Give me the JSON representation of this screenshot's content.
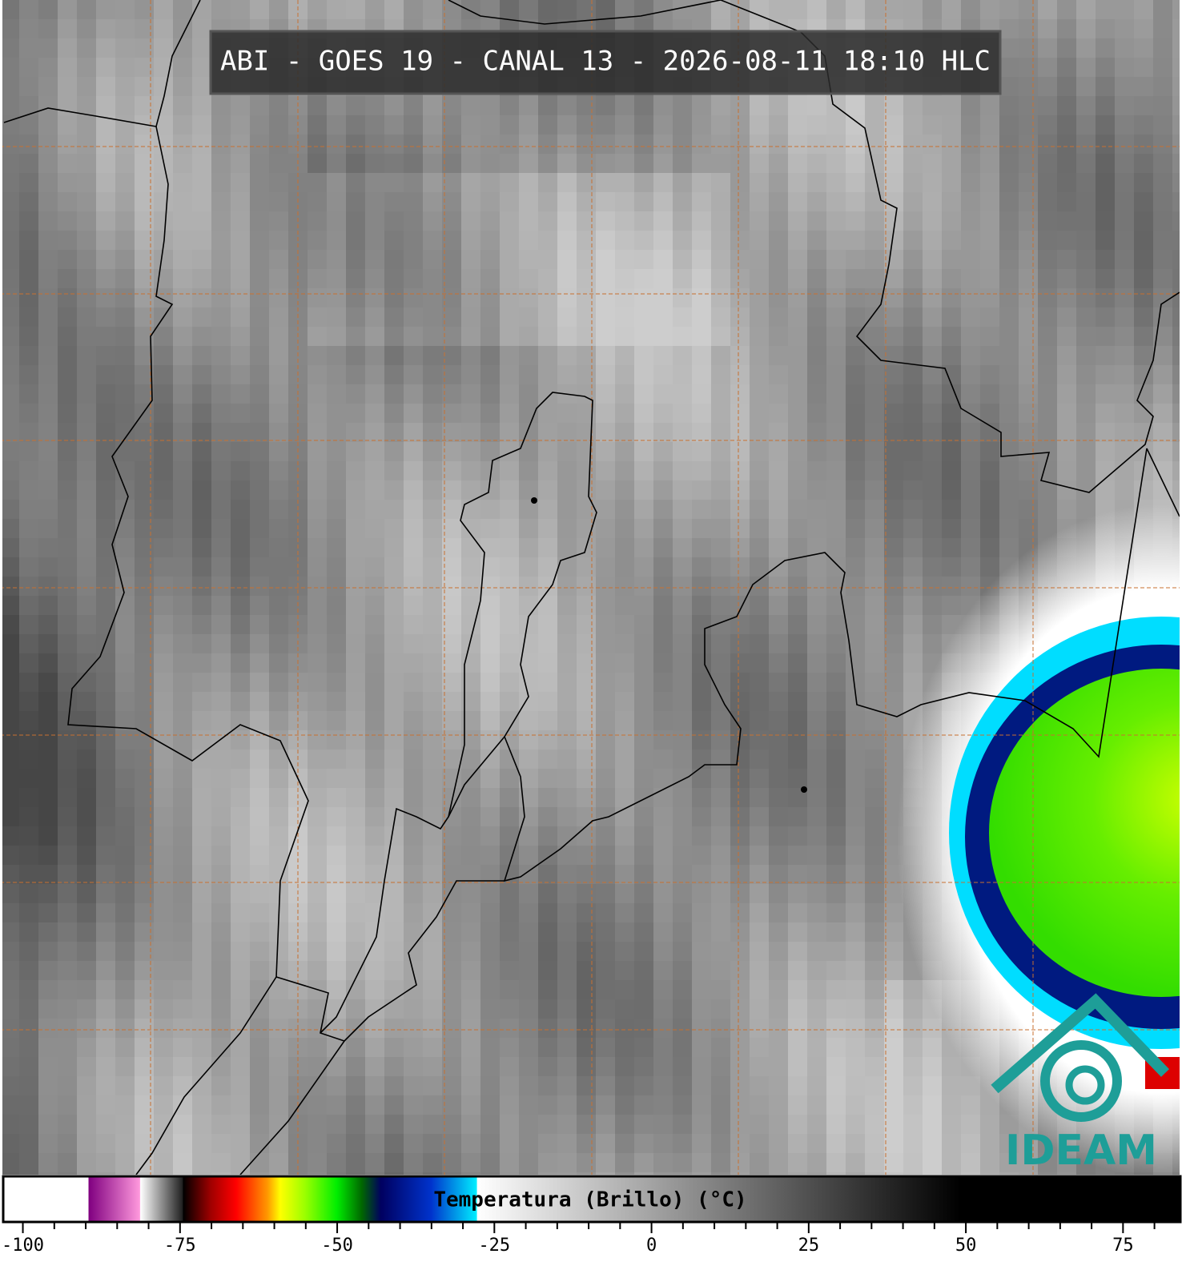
{
  "header": {
    "title": "ABI - GOES 19 - CANAL 13 - 2026-08-11 18:10 HLC"
  },
  "logo": {
    "text": "IDEAM"
  },
  "chart_data": {
    "type": "colorbar",
    "title": "Temperatura (Brillo) (°C)",
    "xlim": [
      -103,
      84
    ],
    "xticks": [
      -100,
      -75,
      -50,
      -25,
      0,
      25,
      50,
      75
    ],
    "minor_xticks": [
      -95,
      -90,
      -85,
      -80,
      -70,
      -65,
      -60,
      -55,
      -45,
      -40,
      -35,
      -30,
      -20,
      -15,
      -10,
      -5,
      5,
      10,
      15,
      20,
      30,
      35,
      40,
      45,
      55,
      60,
      65,
      70,
      80
    ],
    "colormap": [
      {
        "value": -103,
        "color": "#ffffff"
      },
      {
        "value": -89.5,
        "color": "#ffffff"
      },
      {
        "value": -89.4,
        "color": "#800080"
      },
      {
        "value": -81.3,
        "color": "#ff99dd"
      },
      {
        "value": -81.2,
        "color": "#ffffff"
      },
      {
        "value": -74.5,
        "color": "#202020"
      },
      {
        "value": -74.4,
        "color": "#000000"
      },
      {
        "value": -70,
        "color": "#a00000"
      },
      {
        "value": -66,
        "color": "#ff0000"
      },
      {
        "value": -61,
        "color": "#ff9900"
      },
      {
        "value": -59,
        "color": "#ffff00"
      },
      {
        "value": -55,
        "color": "#99ff00"
      },
      {
        "value": -50,
        "color": "#00ee00"
      },
      {
        "value": -46,
        "color": "#006600"
      },
      {
        "value": -43,
        "color": "#000060"
      },
      {
        "value": -35,
        "color": "#0033cc"
      },
      {
        "value": -27.8,
        "color": "#00eeff"
      },
      {
        "value": -27.7,
        "color": "#ffffff"
      },
      {
        "value": 49,
        "color": "#000000"
      },
      {
        "value": 84,
        "color": "#000000"
      }
    ]
  }
}
